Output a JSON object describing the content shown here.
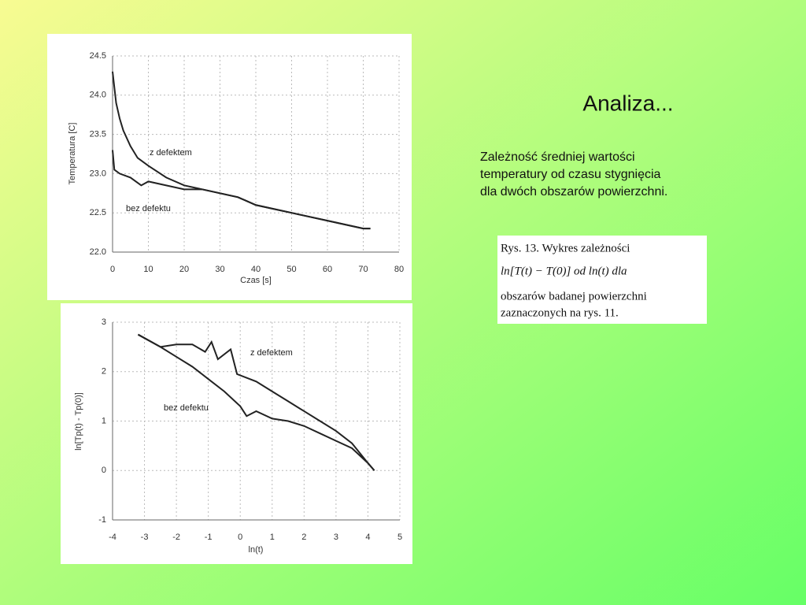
{
  "slide": {
    "title": "Analiza...",
    "description": [
      "Zależność średniej wartości",
      "temperatury od czasu stygnięcia",
      "dla dwóch obszarów powierzchni."
    ],
    "caption": [
      "Rys. 13. Wykres zależności",
      "ln[T(t) − T(0)] od ln(t) dla",
      "obszarów badanej powierzchni",
      "zaznaczonych na rys. 11."
    ]
  },
  "chart_data": [
    {
      "type": "line",
      "x_label": "Czas [s]",
      "y_label": "Temperatura [C]",
      "xlim": [
        0,
        80
      ],
      "ylim": [
        22,
        24.5
      ],
      "grid": true,
      "xticks": [
        0,
        10,
        20,
        30,
        40,
        50,
        60,
        70,
        80
      ],
      "yticks": [
        {
          "value": 22,
          "label": "22.0"
        },
        22.5,
        {
          "value": 23,
          "label": "23.0"
        },
        23.5,
        {
          "value": 24,
          "label": "24.0"
        },
        24.5
      ],
      "series": [
        {
          "name": "z defektem",
          "color": "#222222",
          "x": [
            0,
            1,
            2,
            3,
            5,
            7,
            10,
            15,
            20,
            25,
            30,
            35,
            40,
            45,
            50,
            55,
            60,
            65,
            70,
            72
          ],
          "values": [
            24.3,
            23.9,
            23.7,
            23.55,
            23.35,
            23.2,
            23.1,
            22.95,
            22.85,
            22.8,
            22.75,
            22.7,
            22.6,
            22.55,
            22.5,
            22.45,
            22.4,
            22.35,
            22.3,
            22.3
          ]
        },
        {
          "name": "bez defektu",
          "color": "#222222",
          "x": [
            0,
            0.5,
            2,
            5,
            8,
            10,
            15,
            20,
            25,
            30,
            35,
            40,
            45,
            50,
            55,
            60,
            65,
            70,
            72
          ],
          "values": [
            23.3,
            23.05,
            23.0,
            22.95,
            22.85,
            22.9,
            22.85,
            22.8,
            22.8,
            22.75,
            22.7,
            22.6,
            22.55,
            22.5,
            22.45,
            22.4,
            22.35,
            22.3,
            22.3
          ]
        }
      ]
    },
    {
      "type": "line",
      "x_label": "ln(t)",
      "y_label": "ln[Tp(t) - Tp(0)]",
      "xlim": [
        -4,
        5
      ],
      "ylim": [
        -1,
        3
      ],
      "grid": true,
      "xticks": [
        -4,
        -3,
        -2,
        -1,
        0,
        1,
        2,
        3,
        4,
        5
      ],
      "yticks": [
        -1,
        0,
        1,
        2,
        3
      ],
      "series": [
        {
          "name": "z defektem",
          "color": "#222222",
          "x": [
            -3.2,
            -2.5,
            -2,
            -1.5,
            -1.1,
            -0.9,
            -0.7,
            -0.3,
            -0.1,
            0.5,
            1,
            1.5,
            2,
            2.5,
            3,
            3.5,
            4,
            4.2
          ],
          "values": [
            2.75,
            2.5,
            2.55,
            2.55,
            2.4,
            2.6,
            2.25,
            2.45,
            1.95,
            1.8,
            1.6,
            1.4,
            1.2,
            1.0,
            0.8,
            0.55,
            0.15,
            0.0
          ]
        },
        {
          "name": "bez defektu",
          "color": "#222222",
          "x": [
            -3.2,
            -2.5,
            -2,
            -1.5,
            -1,
            -0.5,
            0,
            0.2,
            0.5,
            1,
            1.5,
            2,
            2.5,
            3,
            3.5,
            4,
            4.2
          ],
          "values": [
            2.75,
            2.5,
            2.3,
            2.1,
            1.85,
            1.6,
            1.3,
            1.1,
            1.2,
            1.05,
            1.0,
            0.9,
            0.75,
            0.6,
            0.45,
            0.15,
            0.0
          ]
        }
      ]
    }
  ]
}
